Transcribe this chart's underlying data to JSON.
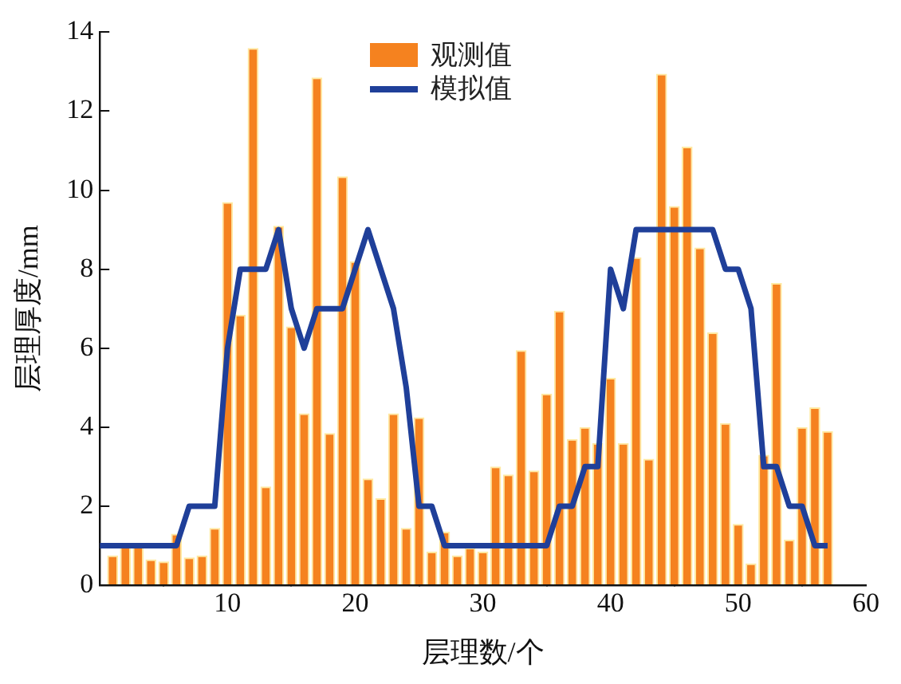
{
  "chart_data": {
    "type": "bar",
    "xlabel": "层理数/个",
    "ylabel": "层理厚度/mm",
    "xlim": [
      0,
      60
    ],
    "xticks": [
      10,
      20,
      30,
      40,
      50,
      60
    ],
    "ylim": [
      0,
      14
    ],
    "yticks": [
      0,
      2,
      4,
      6,
      8,
      10,
      12,
      14
    ],
    "grid": false,
    "legend": "top",
    "series": [
      {
        "name": "观测值",
        "color": "#f5821f",
        "x": [
          1,
          2,
          3,
          4,
          5,
          6,
          7,
          8,
          9,
          10,
          11,
          12,
          13,
          14,
          15,
          16,
          17,
          18,
          19,
          20,
          21,
          22,
          23,
          24,
          25,
          26,
          27,
          28,
          29,
          30,
          31,
          32,
          33,
          34,
          35,
          36,
          37,
          38,
          39,
          40,
          41,
          42,
          43,
          44,
          45,
          46,
          47,
          48,
          49,
          50,
          51,
          52,
          53,
          54,
          55,
          56,
          57
        ],
        "values": [
          0.75,
          1.0,
          1.0,
          0.65,
          0.6,
          1.3,
          0.7,
          0.75,
          1.45,
          9.7,
          6.85,
          13.6,
          2.5,
          9.1,
          6.55,
          4.35,
          12.85,
          3.85,
          10.35,
          8.2,
          2.7,
          2.2,
          4.35,
          1.45,
          4.25,
          0.85,
          1.35,
          0.75,
          0.95,
          0.85,
          3.0,
          2.8,
          5.95,
          2.9,
          4.85,
          6.95,
          3.7,
          4.0,
          3.6,
          5.25,
          3.6,
          8.3,
          3.2,
          12.95,
          9.6,
          11.1,
          8.55,
          6.4,
          4.1,
          1.55,
          0.55,
          3.3,
          7.65,
          1.15,
          4.0,
          4.5,
          3.9
        ]
      },
      {
        "name": "模拟值",
        "type": "line",
        "color": "#1f3f99",
        "marker": "none",
        "line_style": "solid",
        "x": [
          0,
          6,
          7,
          9,
          10,
          11,
          13,
          14,
          15,
          16,
          17,
          19,
          21,
          23,
          24,
          25,
          26,
          27,
          35,
          36,
          37,
          38,
          39,
          40,
          41,
          42,
          48,
          49,
          50,
          51,
          52,
          53,
          54,
          55,
          56,
          57
        ],
        "values": [
          1,
          1,
          2,
          2,
          6,
          8,
          8,
          9,
          7,
          6,
          7,
          7,
          9,
          7,
          5,
          2,
          2,
          1,
          1,
          2,
          2,
          3,
          3,
          8,
          7,
          9,
          9,
          8,
          8,
          7,
          3,
          3,
          2,
          2,
          1,
          1
        ]
      }
    ]
  }
}
